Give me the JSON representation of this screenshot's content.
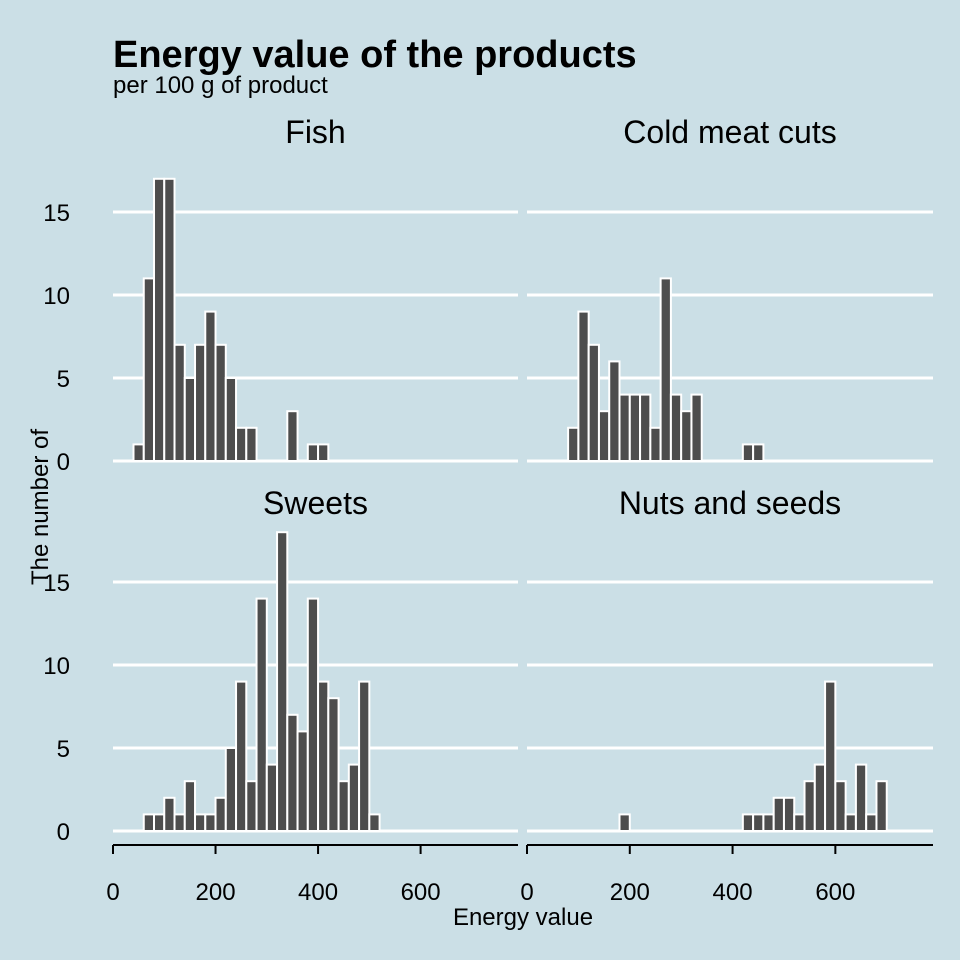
{
  "chart_data": {
    "type": "bar",
    "title": "Energy value of the products",
    "subtitle": "per 100 g of product",
    "xlabel": "Energy value",
    "ylabel": "The number of",
    "xlim": [
      0,
      790
    ],
    "ylim": [
      0,
      18
    ],
    "bin_width": 20,
    "x_ticks": [
      "0",
      "200",
      "400",
      "600"
    ],
    "y_ticks": [
      "0",
      "5",
      "10",
      "15"
    ],
    "panels": [
      {
        "name": "Fish",
        "bins": [
          {
            "x": 50,
            "count": 1
          },
          {
            "x": 70,
            "count": 11
          },
          {
            "x": 90,
            "count": 17
          },
          {
            "x": 110,
            "count": 17
          },
          {
            "x": 130,
            "count": 7
          },
          {
            "x": 150,
            "count": 5
          },
          {
            "x": 170,
            "count": 7
          },
          {
            "x": 190,
            "count": 9
          },
          {
            "x": 210,
            "count": 7
          },
          {
            "x": 230,
            "count": 5
          },
          {
            "x": 250,
            "count": 2
          },
          {
            "x": 270,
            "count": 2
          },
          {
            "x": 350,
            "count": 3
          },
          {
            "x": 390,
            "count": 1
          },
          {
            "x": 410,
            "count": 1
          }
        ]
      },
      {
        "name": "Cold meat cuts",
        "bins": [
          {
            "x": 90,
            "count": 2
          },
          {
            "x": 110,
            "count": 9
          },
          {
            "x": 130,
            "count": 7
          },
          {
            "x": 150,
            "count": 3
          },
          {
            "x": 170,
            "count": 6
          },
          {
            "x": 190,
            "count": 4
          },
          {
            "x": 210,
            "count": 4
          },
          {
            "x": 230,
            "count": 4
          },
          {
            "x": 250,
            "count": 2
          },
          {
            "x": 270,
            "count": 11
          },
          {
            "x": 290,
            "count": 4
          },
          {
            "x": 310,
            "count": 3
          },
          {
            "x": 330,
            "count": 4
          },
          {
            "x": 430,
            "count": 1
          },
          {
            "x": 450,
            "count": 1
          }
        ]
      },
      {
        "name": "Sweets",
        "bins": [
          {
            "x": 70,
            "count": 1
          },
          {
            "x": 90,
            "count": 1
          },
          {
            "x": 110,
            "count": 2
          },
          {
            "x": 130,
            "count": 1
          },
          {
            "x": 150,
            "count": 3
          },
          {
            "x": 170,
            "count": 1
          },
          {
            "x": 190,
            "count": 1
          },
          {
            "x": 210,
            "count": 2
          },
          {
            "x": 230,
            "count": 5
          },
          {
            "x": 250,
            "count": 9
          },
          {
            "x": 270,
            "count": 3
          },
          {
            "x": 290,
            "count": 14
          },
          {
            "x": 310,
            "count": 4
          },
          {
            "x": 330,
            "count": 18
          },
          {
            "x": 350,
            "count": 7
          },
          {
            "x": 370,
            "count": 6
          },
          {
            "x": 390,
            "count": 14
          },
          {
            "x": 410,
            "count": 9
          },
          {
            "x": 430,
            "count": 8
          },
          {
            "x": 450,
            "count": 3
          },
          {
            "x": 470,
            "count": 4
          },
          {
            "x": 490,
            "count": 9
          },
          {
            "x": 510,
            "count": 1
          }
        ]
      },
      {
        "name": "Nuts and seeds",
        "bins": [
          {
            "x": 190,
            "count": 1
          },
          {
            "x": 430,
            "count": 1
          },
          {
            "x": 450,
            "count": 1
          },
          {
            "x": 470,
            "count": 1
          },
          {
            "x": 490,
            "count": 2
          },
          {
            "x": 510,
            "count": 2
          },
          {
            "x": 530,
            "count": 1
          },
          {
            "x": 550,
            "count": 3
          },
          {
            "x": 570,
            "count": 4
          },
          {
            "x": 590,
            "count": 9
          },
          {
            "x": 610,
            "count": 3
          },
          {
            "x": 630,
            "count": 1
          },
          {
            "x": 650,
            "count": 4
          },
          {
            "x": 670,
            "count": 1
          },
          {
            "x": 690,
            "count": 3
          }
        ]
      }
    ]
  }
}
